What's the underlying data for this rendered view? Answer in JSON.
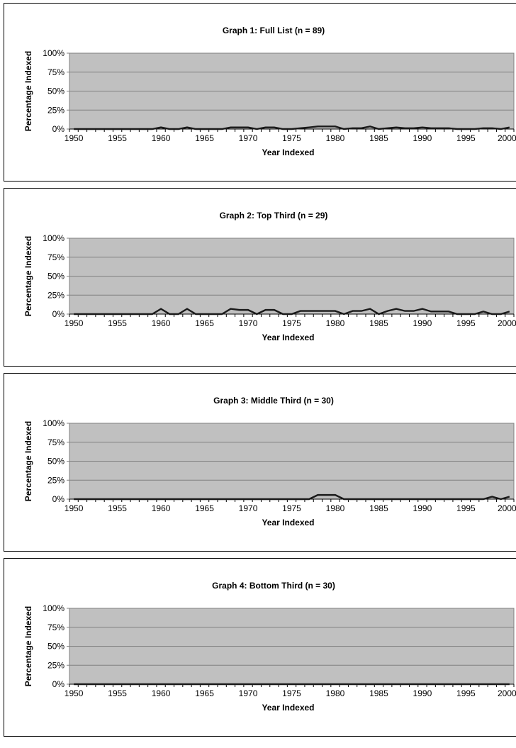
{
  "colors": {
    "plot_background": "#c0c0c0",
    "gridline": "#808080",
    "series_line": "#1a1a1a",
    "frame": "#000000"
  },
  "chart_data": [
    {
      "type": "line",
      "title": "Graph 1: Full List (n = 89)",
      "xlabel": "Year Indexed",
      "ylabel": "Percentage Indexed",
      "x_tick_labels": [
        "1950",
        "1955",
        "1960",
        "1965",
        "1970",
        "1975",
        "1980",
        "1985",
        "1990",
        "1995",
        "2000+"
      ],
      "y_tick_labels": [
        "100%",
        "75%",
        "50%",
        "25%",
        "0%"
      ],
      "ylim": [
        0,
        100
      ],
      "grid": true,
      "categories": [
        "1950",
        "1951",
        "1952",
        "1953",
        "1954",
        "1955",
        "1956",
        "1957",
        "1958",
        "1959",
        "1960",
        "1961",
        "1962",
        "1963",
        "1964",
        "1965",
        "1966",
        "1967",
        "1968",
        "1969",
        "1970",
        "1971",
        "1972",
        "1973",
        "1974",
        "1975",
        "1976",
        "1977",
        "1978",
        "1979",
        "1980",
        "1981",
        "1982",
        "1983",
        "1984",
        "1985",
        "1986",
        "1987",
        "1988",
        "1989",
        "1990",
        "1991",
        "1992",
        "1993",
        "1994",
        "1995",
        "1996",
        "1997",
        "1998",
        "1999",
        "2000+"
      ],
      "values": [
        0,
        0,
        0,
        0,
        0,
        0,
        0,
        0,
        0,
        0,
        2.2,
        0,
        0,
        2.2,
        0,
        0,
        0,
        0,
        2.2,
        2.2,
        2.2,
        0,
        2.2,
        2.2,
        0,
        0,
        1.1,
        2.2,
        3.4,
        3.4,
        3.4,
        0,
        1.1,
        1.1,
        3.4,
        0,
        1.1,
        2.2,
        1.1,
        1.1,
        2.2,
        1.1,
        1.1,
        1.1,
        0,
        0,
        0,
        1.1,
        1.1,
        0,
        2.2
      ]
    },
    {
      "type": "line",
      "title": "Graph 2: Top Third (n = 29)",
      "xlabel": "Year Indexed",
      "ylabel": "Percentage Indexed",
      "x_tick_labels": [
        "1950",
        "1955",
        "1960",
        "1965",
        "1970",
        "1975",
        "1980",
        "1985",
        "1990",
        "1995",
        "2000+"
      ],
      "y_tick_labels": [
        "100%",
        "75%",
        "50%",
        "25%",
        "0%"
      ],
      "ylim": [
        0,
        100
      ],
      "grid": true,
      "categories": [
        "1950",
        "1951",
        "1952",
        "1953",
        "1954",
        "1955",
        "1956",
        "1957",
        "1958",
        "1959",
        "1960",
        "1961",
        "1962",
        "1963",
        "1964",
        "1965",
        "1966",
        "1967",
        "1968",
        "1969",
        "1970",
        "1971",
        "1972",
        "1973",
        "1974",
        "1975",
        "1976",
        "1977",
        "1978",
        "1979",
        "1980",
        "1981",
        "1982",
        "1983",
        "1984",
        "1985",
        "1986",
        "1987",
        "1988",
        "1989",
        "1990",
        "1991",
        "1992",
        "1993",
        "1994",
        "1995",
        "1996",
        "1997",
        "1998",
        "1999",
        "2000+"
      ],
      "values": [
        0,
        0,
        0,
        0,
        0,
        0,
        0,
        0,
        0,
        0,
        6.9,
        0,
        0,
        6.9,
        0,
        0,
        0,
        0,
        6.9,
        5.5,
        5.5,
        0,
        5.5,
        5.5,
        0,
        0,
        4.1,
        4.1,
        4.1,
        4.1,
        4.1,
        0,
        4.1,
        4.1,
        6.9,
        0,
        4.1,
        6.9,
        4.1,
        4.1,
        6.9,
        3.4,
        3.4,
        3.4,
        0,
        0,
        0,
        3.4,
        0,
        0,
        3.4
      ]
    },
    {
      "type": "line",
      "title": "Graph 3: Middle Third (n = 30)",
      "xlabel": "Year Indexed",
      "ylabel": "Percentage Indexed",
      "x_tick_labels": [
        "1950",
        "1955",
        "1960",
        "1965",
        "1970",
        "1975",
        "1980",
        "1985",
        "1990",
        "1995",
        "2000+"
      ],
      "y_tick_labels": [
        "100%",
        "75%",
        "50%",
        "25%",
        "0%"
      ],
      "ylim": [
        0,
        100
      ],
      "grid": true,
      "categories": [
        "1950",
        "1951",
        "1952",
        "1953",
        "1954",
        "1955",
        "1956",
        "1957",
        "1958",
        "1959",
        "1960",
        "1961",
        "1962",
        "1963",
        "1964",
        "1965",
        "1966",
        "1967",
        "1968",
        "1969",
        "1970",
        "1971",
        "1972",
        "1973",
        "1974",
        "1975",
        "1976",
        "1977",
        "1978",
        "1979",
        "1980",
        "1981",
        "1982",
        "1983",
        "1984",
        "1985",
        "1986",
        "1987",
        "1988",
        "1989",
        "1990",
        "1991",
        "1992",
        "1993",
        "1994",
        "1995",
        "1996",
        "1997",
        "1998",
        "1999",
        "2000+"
      ],
      "values": [
        0,
        0,
        0,
        0,
        0,
        0,
        0,
        0,
        0,
        0,
        0,
        0,
        0,
        0,
        0,
        0,
        0,
        0,
        0,
        0,
        0,
        0,
        0,
        0,
        0,
        0,
        0,
        0,
        5.5,
        5.5,
        5.5,
        0,
        0,
        0,
        0,
        0,
        0,
        0,
        0,
        0,
        0,
        0,
        0,
        0,
        0,
        0,
        0,
        0,
        3.3,
        0,
        3.3
      ]
    },
    {
      "type": "line",
      "title": "Graph 4: Bottom Third (n = 30)",
      "xlabel": "Year Indexed",
      "ylabel": "Percentage Indexed",
      "x_tick_labels": [
        "1950",
        "1955",
        "1960",
        "1965",
        "1970",
        "1975",
        "1980",
        "1985",
        "1990",
        "1995",
        "2000+"
      ],
      "y_tick_labels": [
        "100%",
        "75%",
        "50%",
        "25%",
        "0%"
      ],
      "ylim": [
        0,
        100
      ],
      "grid": true,
      "categories": [
        "1950",
        "1951",
        "1952",
        "1953",
        "1954",
        "1955",
        "1956",
        "1957",
        "1958",
        "1959",
        "1960",
        "1961",
        "1962",
        "1963",
        "1964",
        "1965",
        "1966",
        "1967",
        "1968",
        "1969",
        "1970",
        "1971",
        "1972",
        "1973",
        "1974",
        "1975",
        "1976",
        "1977",
        "1978",
        "1979",
        "1980",
        "1981",
        "1982",
        "1983",
        "1984",
        "1985",
        "1986",
        "1987",
        "1988",
        "1989",
        "1990",
        "1991",
        "1992",
        "1993",
        "1994",
        "1995",
        "1996",
        "1997",
        "1998",
        "1999",
        "2000+"
      ],
      "values": [
        0,
        0,
        0,
        0,
        0,
        0,
        0,
        0,
        0,
        0,
        0,
        0,
        0,
        0,
        0,
        0,
        0,
        0,
        0,
        0,
        0,
        0,
        0,
        0,
        0,
        0,
        0,
        0,
        0,
        0,
        0,
        0,
        0,
        0,
        0,
        0,
        0,
        0,
        0,
        0,
        0,
        0,
        0,
        0,
        0,
        0,
        0,
        0,
        0,
        0,
        0
      ]
    }
  ]
}
